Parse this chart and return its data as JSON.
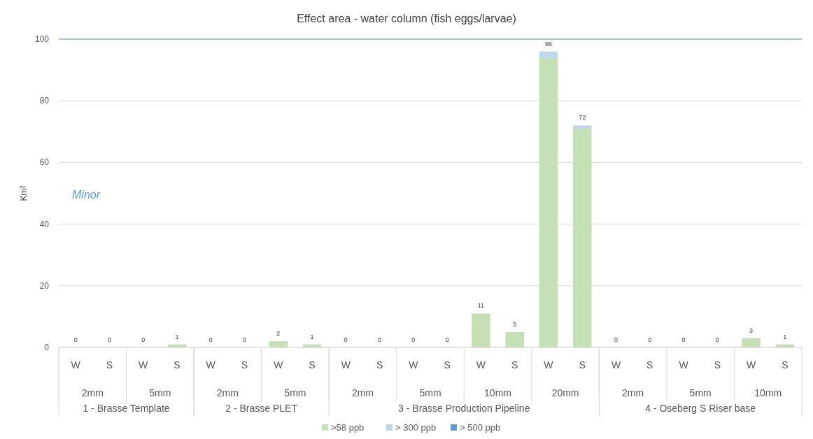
{
  "chart_data": {
    "type": "bar",
    "title": "Effect area - water column (fish eggs/larvae)",
    "ylabel": "Km²",
    "categories": [
      "W",
      "S",
      "W",
      "S",
      "W",
      "S",
      "W",
      "S",
      "W",
      "S",
      "W",
      "S",
      "W",
      "S",
      "W",
      "S",
      "W",
      "S",
      "W",
      "S",
      "W",
      "S"
    ],
    "series": [
      {
        "name": ">58 ppb",
        "color": "#c5e0b4",
        "values": [
          0,
          0,
          0,
          1,
          0,
          0,
          2,
          1,
          0,
          0,
          0,
          0,
          11,
          5,
          94,
          71,
          0,
          0,
          0,
          0,
          3,
          1
        ]
      },
      {
        "name": "> 300 ppb",
        "color": "#bdd7ee",
        "values": [
          0,
          0,
          0,
          0,
          0,
          0,
          0,
          0,
          0,
          0,
          0,
          0,
          0,
          0,
          2,
          1,
          0,
          0,
          0,
          0,
          0,
          0
        ]
      },
      {
        "name": "> 500 ppb",
        "color": "#5b9bd5",
        "values": [
          0,
          0,
          0,
          0,
          0,
          0,
          0,
          0,
          0,
          0,
          0,
          0,
          0,
          0,
          0,
          0,
          0,
          0,
          0,
          0,
          0,
          0
        ]
      }
    ],
    "stacked": true,
    "totals": [
      "0",
      "0",
      "0",
      "1",
      "0",
      "0",
      "2",
      "1",
      "0",
      "0",
      "0",
      "0",
      "11",
      "5",
      "96",
      "72",
      "0",
      "0",
      "0",
      "0",
      "3",
      "1"
    ],
    "ylim": [
      0,
      100
    ],
    "yticks": [
      0,
      20,
      40,
      60,
      80,
      100
    ],
    "grid": "y",
    "legend": "bottom",
    "ref_lines": [
      {
        "axis": "y",
        "value": 100,
        "color": "#5b9bd5"
      }
    ],
    "annotations": [
      "Minor",
      "2mm",
      "5mm",
      "2mm",
      "5mm",
      "2mm",
      "5mm",
      "10mm",
      "20mm",
      "2mm",
      "5mm",
      "10mm",
      "1 - Brasse Template",
      "2 - Brasse PLET",
      "3 - Brasse Production Pipeline",
      "4 - Oseberg S Riser base"
    ]
  }
}
